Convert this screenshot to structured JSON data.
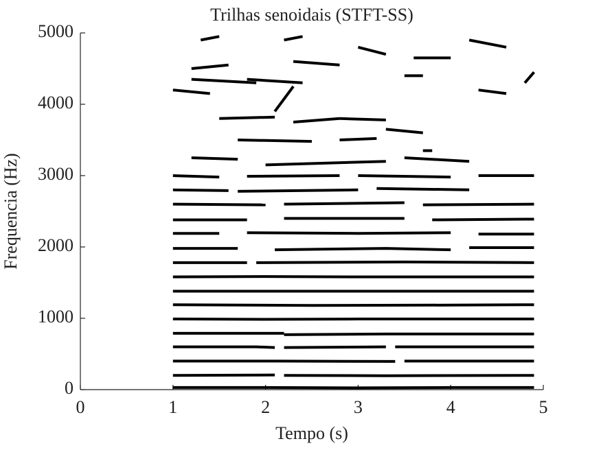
{
  "chart_data": {
    "type": "line",
    "title": "Trilhas senoidais (STFT-SS)",
    "xlabel": "Tempo (s)",
    "ylabel": "Frequencia (Hz)",
    "color": "#000000",
    "xlim": [
      0,
      5
    ],
    "xticks": [
      0,
      1,
      2,
      3,
      4,
      5
    ],
    "ylim": [
      0,
      5000
    ],
    "yticks": [
      0,
      1000,
      2000,
      3000,
      4000,
      5000
    ],
    "series": [
      {
        "x": [
          1,
          2,
          3,
          4,
          4.9
        ],
        "values": [
          30,
          30,
          25,
          30,
          30
        ]
      },
      {
        "x": [
          1,
          2.1
        ],
        "values": [
          200,
          205
        ]
      },
      {
        "x": [
          2.2,
          3.3,
          4.9
        ],
        "values": [
          200,
          195,
          200
        ]
      },
      {
        "x": [
          1,
          2.1,
          3.4
        ],
        "values": [
          400,
          400,
          395
        ]
      },
      {
        "x": [
          3.5,
          4.9
        ],
        "values": [
          400,
          400
        ]
      },
      {
        "x": [
          1,
          1.9,
          2.1
        ],
        "values": [
          600,
          600,
          590
        ]
      },
      {
        "x": [
          2.2,
          3.3
        ],
        "values": [
          590,
          600
        ]
      },
      {
        "x": [
          3.4,
          4.9
        ],
        "values": [
          600,
          600
        ]
      },
      {
        "x": [
          1,
          2.2
        ],
        "values": [
          790,
          790
        ]
      },
      {
        "x": [
          2.2,
          3.3,
          4.9
        ],
        "values": [
          770,
          780,
          780
        ]
      },
      {
        "x": [
          1,
          2,
          3,
          4.9
        ],
        "values": [
          990,
          985,
          990,
          990
        ]
      },
      {
        "x": [
          1,
          2.5,
          4,
          4.9
        ],
        "values": [
          1190,
          1180,
          1185,
          1190
        ]
      },
      {
        "x": [
          1,
          3,
          4.9
        ],
        "values": [
          1380,
          1380,
          1380
        ]
      },
      {
        "x": [
          1,
          2,
          3,
          4.9
        ],
        "values": [
          1580,
          1585,
          1580,
          1580
        ]
      },
      {
        "x": [
          1,
          1.8
        ],
        "values": [
          1780,
          1780
        ]
      },
      {
        "x": [
          1.9,
          3.5,
          4.9
        ],
        "values": [
          1780,
          1790,
          1780
        ]
      },
      {
        "x": [
          1,
          1.7
        ],
        "values": [
          1980,
          1980
        ]
      },
      {
        "x": [
          2.1,
          3.3,
          4
        ],
        "values": [
          1960,
          1980,
          1960
        ]
      },
      {
        "x": [
          4.2,
          4.9
        ],
        "values": [
          1990,
          1990
        ]
      },
      {
        "x": [
          1,
          1.5
        ],
        "values": [
          2190,
          2190
        ]
      },
      {
        "x": [
          1.8,
          3,
          4
        ],
        "values": [
          2200,
          2190,
          2200
        ]
      },
      {
        "x": [
          4.3,
          4.9
        ],
        "values": [
          2180,
          2180
        ]
      },
      {
        "x": [
          1,
          1.8
        ],
        "values": [
          2380,
          2380
        ]
      },
      {
        "x": [
          2.2,
          3.5
        ],
        "values": [
          2400,
          2400
        ]
      },
      {
        "x": [
          3.8,
          4.9
        ],
        "values": [
          2380,
          2390
        ]
      },
      {
        "x": [
          1,
          2
        ],
        "values": [
          2600,
          2590
        ]
      },
      {
        "x": [
          2.2,
          3.5
        ],
        "values": [
          2600,
          2620
        ]
      },
      {
        "x": [
          3.7,
          4.9
        ],
        "values": [
          2590,
          2600
        ]
      },
      {
        "x": [
          1,
          1.6
        ],
        "values": [
          2800,
          2790
        ]
      },
      {
        "x": [
          1.7,
          3
        ],
        "values": [
          2780,
          2800
        ]
      },
      {
        "x": [
          3.2,
          4.2
        ],
        "values": [
          2820,
          2800
        ]
      },
      {
        "x": [
          1,
          1.5
        ],
        "values": [
          3000,
          2980
        ]
      },
      {
        "x": [
          1.8,
          2.8
        ],
        "values": [
          2990,
          3000
        ]
      },
      {
        "x": [
          3,
          4
        ],
        "values": [
          3000,
          2980
        ]
      },
      {
        "x": [
          4.3,
          4.9
        ],
        "values": [
          3000,
          3000
        ]
      },
      {
        "x": [
          1.2,
          1.7
        ],
        "values": [
          3250,
          3230
        ]
      },
      {
        "x": [
          2,
          3.3
        ],
        "values": [
          3150,
          3200
        ]
      },
      {
        "x": [
          3.5,
          4.2
        ],
        "values": [
          3250,
          3200
        ]
      },
      {
        "x": [
          1.7,
          2.5
        ],
        "values": [
          3500,
          3480
        ]
      },
      {
        "x": [
          2.8,
          3.2
        ],
        "values": [
          3500,
          3520
        ]
      },
      {
        "x": [
          3.3,
          3.7
        ],
        "values": [
          3650,
          3600
        ]
      },
      {
        "x": [
          1.5,
          2.1
        ],
        "values": [
          3800,
          3820
        ]
      },
      {
        "x": [
          2.3,
          2.8
        ],
        "values": [
          3750,
          3800
        ]
      },
      {
        "x": [
          2.8,
          3.3
        ],
        "values": [
          3800,
          3780
        ]
      },
      {
        "x": [
          1,
          1.4
        ],
        "values": [
          4200,
          4150
        ]
      },
      {
        "x": [
          2.1,
          2.3
        ],
        "values": [
          3900,
          4250
        ]
      },
      {
        "x": [
          1.8,
          2.4
        ],
        "values": [
          4350,
          4300
        ]
      },
      {
        "x": [
          3.5,
          3.7
        ],
        "values": [
          4400,
          4400
        ]
      },
      {
        "x": [
          1.2,
          1.6
        ],
        "values": [
          4500,
          4550
        ]
      },
      {
        "x": [
          2.3,
          2.8
        ],
        "values": [
          4600,
          4550
        ]
      },
      {
        "x": [
          3,
          3.3
        ],
        "values": [
          4800,
          4700
        ]
      },
      {
        "x": [
          4.2,
          4.6
        ],
        "values": [
          4900,
          4800
        ]
      },
      {
        "x": [
          1.3,
          1.5
        ],
        "values": [
          4900,
          4950
        ]
      },
      {
        "x": [
          2.2,
          2.4
        ],
        "values": [
          4900,
          4950
        ]
      },
      {
        "x": [
          3.6,
          4
        ],
        "values": [
          4650,
          4650
        ]
      },
      {
        "x": [
          4.8,
          4.9
        ],
        "values": [
          4300,
          4450
        ]
      },
      {
        "x": [
          1.2,
          1.9
        ],
        "values": [
          4350,
          4300
        ]
      },
      {
        "x": [
          4.3,
          4.6
        ],
        "values": [
          4200,
          4150
        ]
      },
      {
        "x": [
          3.7,
          3.8
        ],
        "values": [
          3350,
          3350
        ]
      }
    ]
  }
}
